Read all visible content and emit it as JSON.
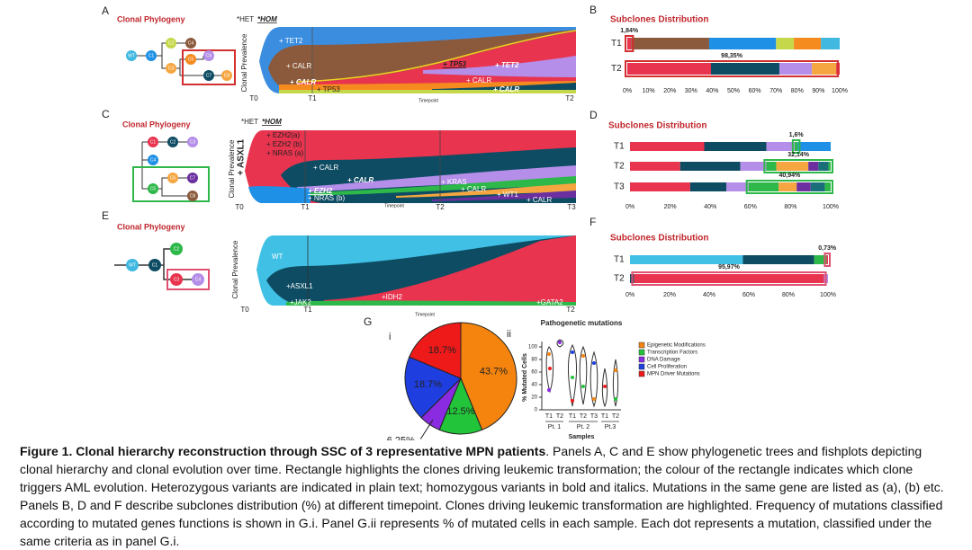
{
  "panels": {
    "A": {
      "label": "A",
      "phylogeny_title": "Clonal Phylogeny",
      "het": "*HET",
      "hom": "*HOM",
      "tree_nodes": [
        "WT",
        "C1",
        "C2",
        "C3",
        "C4",
        "C5",
        "C6",
        "C7",
        "C8"
      ],
      "y_label": "Clonal Prevalence",
      "timepoints": [
        "T0",
        "T1",
        "T2"
      ],
      "x_label": "Timepoint",
      "clone_labels": [
        "+ TET2",
        "+ CALR",
        "+ CALR",
        "+ TP53",
        "+ TP53",
        "+ TET2",
        "+ CALR",
        "+ CALR"
      ]
    },
    "B": {
      "label": "B"
    },
    "C": {
      "label": "C",
      "phylogeny_title": "Clonal Phylogeny",
      "het": "*HET",
      "hom": "*HOM",
      "tree_nodes": [
        "C1",
        "C2",
        "C3",
        "C4",
        "C5",
        "C6",
        "C7",
        "C8"
      ],
      "y_label": "Clonal Prevalence",
      "side_label": "+ ASXL1",
      "timepoints": [
        "T0",
        "T1",
        "T2",
        "T3"
      ],
      "x_label": "Timepoint",
      "clone_labels": [
        "+ EZH2(a)",
        "+ EZH2 (b)",
        "+ NRAS (a)",
        "+ CALR",
        "+ CALR",
        "+ EZH2",
        "+ NRAS (b)",
        "+ KRAS",
        "+ CALR",
        "+ WT1",
        "+ CALR"
      ]
    },
    "D": {
      "label": "D"
    },
    "E": {
      "label": "E",
      "phylogeny_title": "Clonal Phylogeny",
      "tree_nodes": [
        "WT",
        "C1",
        "C2",
        "C3",
        "C4"
      ],
      "y_label": "Clonal Prevalence",
      "timepoints": [
        "T0",
        "T1",
        "T2"
      ],
      "x_label": "Timepoint",
      "clone_labels": [
        "WT",
        "+ASXL1",
        "+JAK2",
        "+IDH2",
        "+GATA2"
      ]
    },
    "F": {
      "label": "F"
    },
    "G": {
      "label": "G",
      "sub_i": "i",
      "sub_ii": "ii",
      "violin": {
        "title": "Pathogenetic mutations",
        "ylabel": "% Mutated Cells",
        "xlabel": "Samples",
        "xticks": [
          "T1",
          "T2",
          "T1",
          "T2",
          "T3",
          "T1",
          "T2"
        ],
        "groups": [
          "Pt. 1",
          "Pt. 2",
          "Pt.3"
        ],
        "ylim": [
          0,
          100
        ],
        "yticks": [
          0,
          20,
          40,
          60,
          80,
          100
        ]
      }
    }
  },
  "chart_data": [
    {
      "type": "stacked-bar",
      "title": "Subclones Distribution",
      "categories": [
        "T1",
        "T2"
      ],
      "stacks": [
        {
          "values": [
            1.84,
            36.7,
            31.5,
            8.4,
            12.7,
            8.86
          ],
          "colors": [
            "#e8344e",
            "#8b5a3c",
            "#1e90e6",
            "#c5d84a",
            "#f58a1f",
            "#40b8e0"
          ],
          "highlighted": [
            true,
            false,
            false,
            false,
            false,
            false
          ],
          "highlight_value": 1.84,
          "highlight_label": "1,84%",
          "highlight_color": "#d32f2f"
        },
        {
          "values": [
            39.4,
            32.2,
            15.3,
            11.45,
            1.65
          ],
          "colors": [
            "#e8344e",
            "#0e4c63",
            "#b48ee8",
            "#f5a640",
            "#e8344e"
          ],
          "highlighted": [
            true,
            true,
            true,
            true,
            false
          ],
          "highlight_value": 98.35,
          "highlight_label": "98,35%",
          "highlight_color": "#d32f2f"
        }
      ],
      "xlim": [
        0,
        100
      ],
      "xticks": [
        {
          "value": 0,
          "label": "0%"
        },
        {
          "value": 10,
          "label": "10%"
        },
        {
          "value": 20,
          "label": "20%"
        },
        {
          "value": 30,
          "label": "30%"
        },
        {
          "value": 40,
          "label": "40%"
        },
        {
          "value": 50,
          "label": "50%"
        },
        {
          "value": 60,
          "label": "60%"
        },
        {
          "value": 70,
          "label": "70%"
        },
        {
          "value": 80,
          "label": "80%"
        },
        {
          "value": 90,
          "label": "90%"
        },
        {
          "value": 100,
          "label": "100%"
        }
      ]
    },
    {
      "type": "stacked-bar",
      "title": "Subclones Distribution",
      "categories": [
        "T1",
        "T2",
        "T3"
      ],
      "stacks": [
        {
          "values": [
            37,
            31,
            14,
            1.6,
            16.4
          ],
          "colors": [
            "#e8344e",
            "#0e4c63",
            "#b48ee8",
            "#2eb84a",
            "#1e90e6"
          ],
          "highlighted": [
            false,
            false,
            false,
            true,
            false
          ],
          "highlight_value": 1.6,
          "highlight_label": "1,6%",
          "highlight_color": "#2eb84a"
        },
        {
          "values": [
            25,
            30,
            12.86,
            5,
            16,
            5,
            5,
            1.14
          ],
          "colors": [
            "#e8344e",
            "#0e4c63",
            "#b48ee8",
            "#2eb84a",
            "#f5a640",
            "#6b2fa0",
            "#1a6e7a",
            "#2eb84a"
          ],
          "highlighted": [
            false,
            false,
            false,
            true,
            true,
            true,
            true,
            true
          ],
          "highlight_value": 32.14,
          "highlight_label": "32,14%",
          "highlight_color": "#2eb84a"
        },
        {
          "values": [
            30,
            18,
            11.06,
            15,
            9,
            7,
            7,
            2.94
          ],
          "colors": [
            "#e8344e",
            "#0e4c63",
            "#b48ee8",
            "#2eb84a",
            "#f5a640",
            "#6b2fa0",
            "#1a6e7a",
            "#2eb84a"
          ],
          "highlighted": [
            false,
            false,
            false,
            true,
            true,
            true,
            true,
            true
          ],
          "highlight_value": 40.94,
          "highlight_label": "40,94%",
          "highlight_color": "#2eb84a"
        }
      ],
      "xlim": [
        0,
        100
      ],
      "xticks": [
        {
          "value": 0,
          "label": "0%"
        },
        {
          "value": 20,
          "label": "20%"
        },
        {
          "value": 40,
          "label": "40%"
        },
        {
          "value": 60,
          "label": "60%"
        },
        {
          "value": 80,
          "label": "80%"
        },
        {
          "value": 100,
          "label": "100%"
        }
      ]
    },
    {
      "type": "stacked-bar",
      "title": "Subclones Distribution",
      "categories": [
        "T1",
        "T2"
      ],
      "stacks": [
        {
          "values": [
            57,
            36,
            6.27,
            0.73
          ],
          "colors": [
            "#40c0e4",
            "#0e4c63",
            "#2eb84a",
            "#e8344e"
          ],
          "highlighted": [
            false,
            false,
            false,
            true
          ],
          "highlight_value": 0.73,
          "highlight_label": "0,73%",
          "highlight_color": "#e05070"
        },
        {
          "values": [
            2,
            95.97,
            2.03
          ],
          "colors": [
            "#0e4c63",
            "#e8344e",
            "#b48ee8"
          ],
          "highlighted": [
            false,
            true,
            false
          ],
          "highlight_value": 95.97,
          "highlight_label": "95,97%",
          "highlight_color": "#e05070"
        }
      ],
      "xlim": [
        0,
        100
      ],
      "xticks": [
        {
          "value": 0,
          "label": "0%"
        },
        {
          "value": 20,
          "label": "20%"
        },
        {
          "value": 40,
          "label": "40%"
        },
        {
          "value": 60,
          "label": "60%"
        },
        {
          "value": 80,
          "label": "80%"
        },
        {
          "value": 100,
          "label": "100%"
        }
      ]
    },
    {
      "type": "pie",
      "categories": [
        "Epigenetic Modifications",
        "Transcription Factors",
        "DNA Damage",
        "Cell Proliferation",
        "MPN Driver Mutations"
      ],
      "values": [
        43.7,
        12.5,
        6.25,
        18.7,
        18.7
      ],
      "value_labels": [
        "43.7%",
        "12.5%",
        "6.25%",
        "18.7%",
        "18.7%"
      ],
      "colors": [
        "#f5840e",
        "#22c43a",
        "#8a2be2",
        "#1e3ee0",
        "#ee1a1a"
      ]
    }
  ],
  "caption": {
    "title": "Figure 1. Clonal hierarchy reconstruction through SSC of 3 representative MPN patients",
    "text": ". Panels A, C and E show phylogenetic trees and fishplots depicting clonal hierarchy and clonal evolution over time. Rectangle highlights the clones driving leukemic transformation; the colour of the rectangle indicates which clone triggers AML evolution. Heterozygous variants are indicated in plain text; homozygous variants in bold and italics. Mutations in the same gene are listed as (a), (b) etc. Panels B, D and F describe subclones distribution (%) at different timepoint. Clones driving leukemic transformation are highlighted. Frequency of mutations classified according to mutated genes functions is shown in G.i. Panel G.ii represents % of mutated cells in each sample. Each dot represents a mutation, classified under the same criteria as in panel G.i."
  }
}
